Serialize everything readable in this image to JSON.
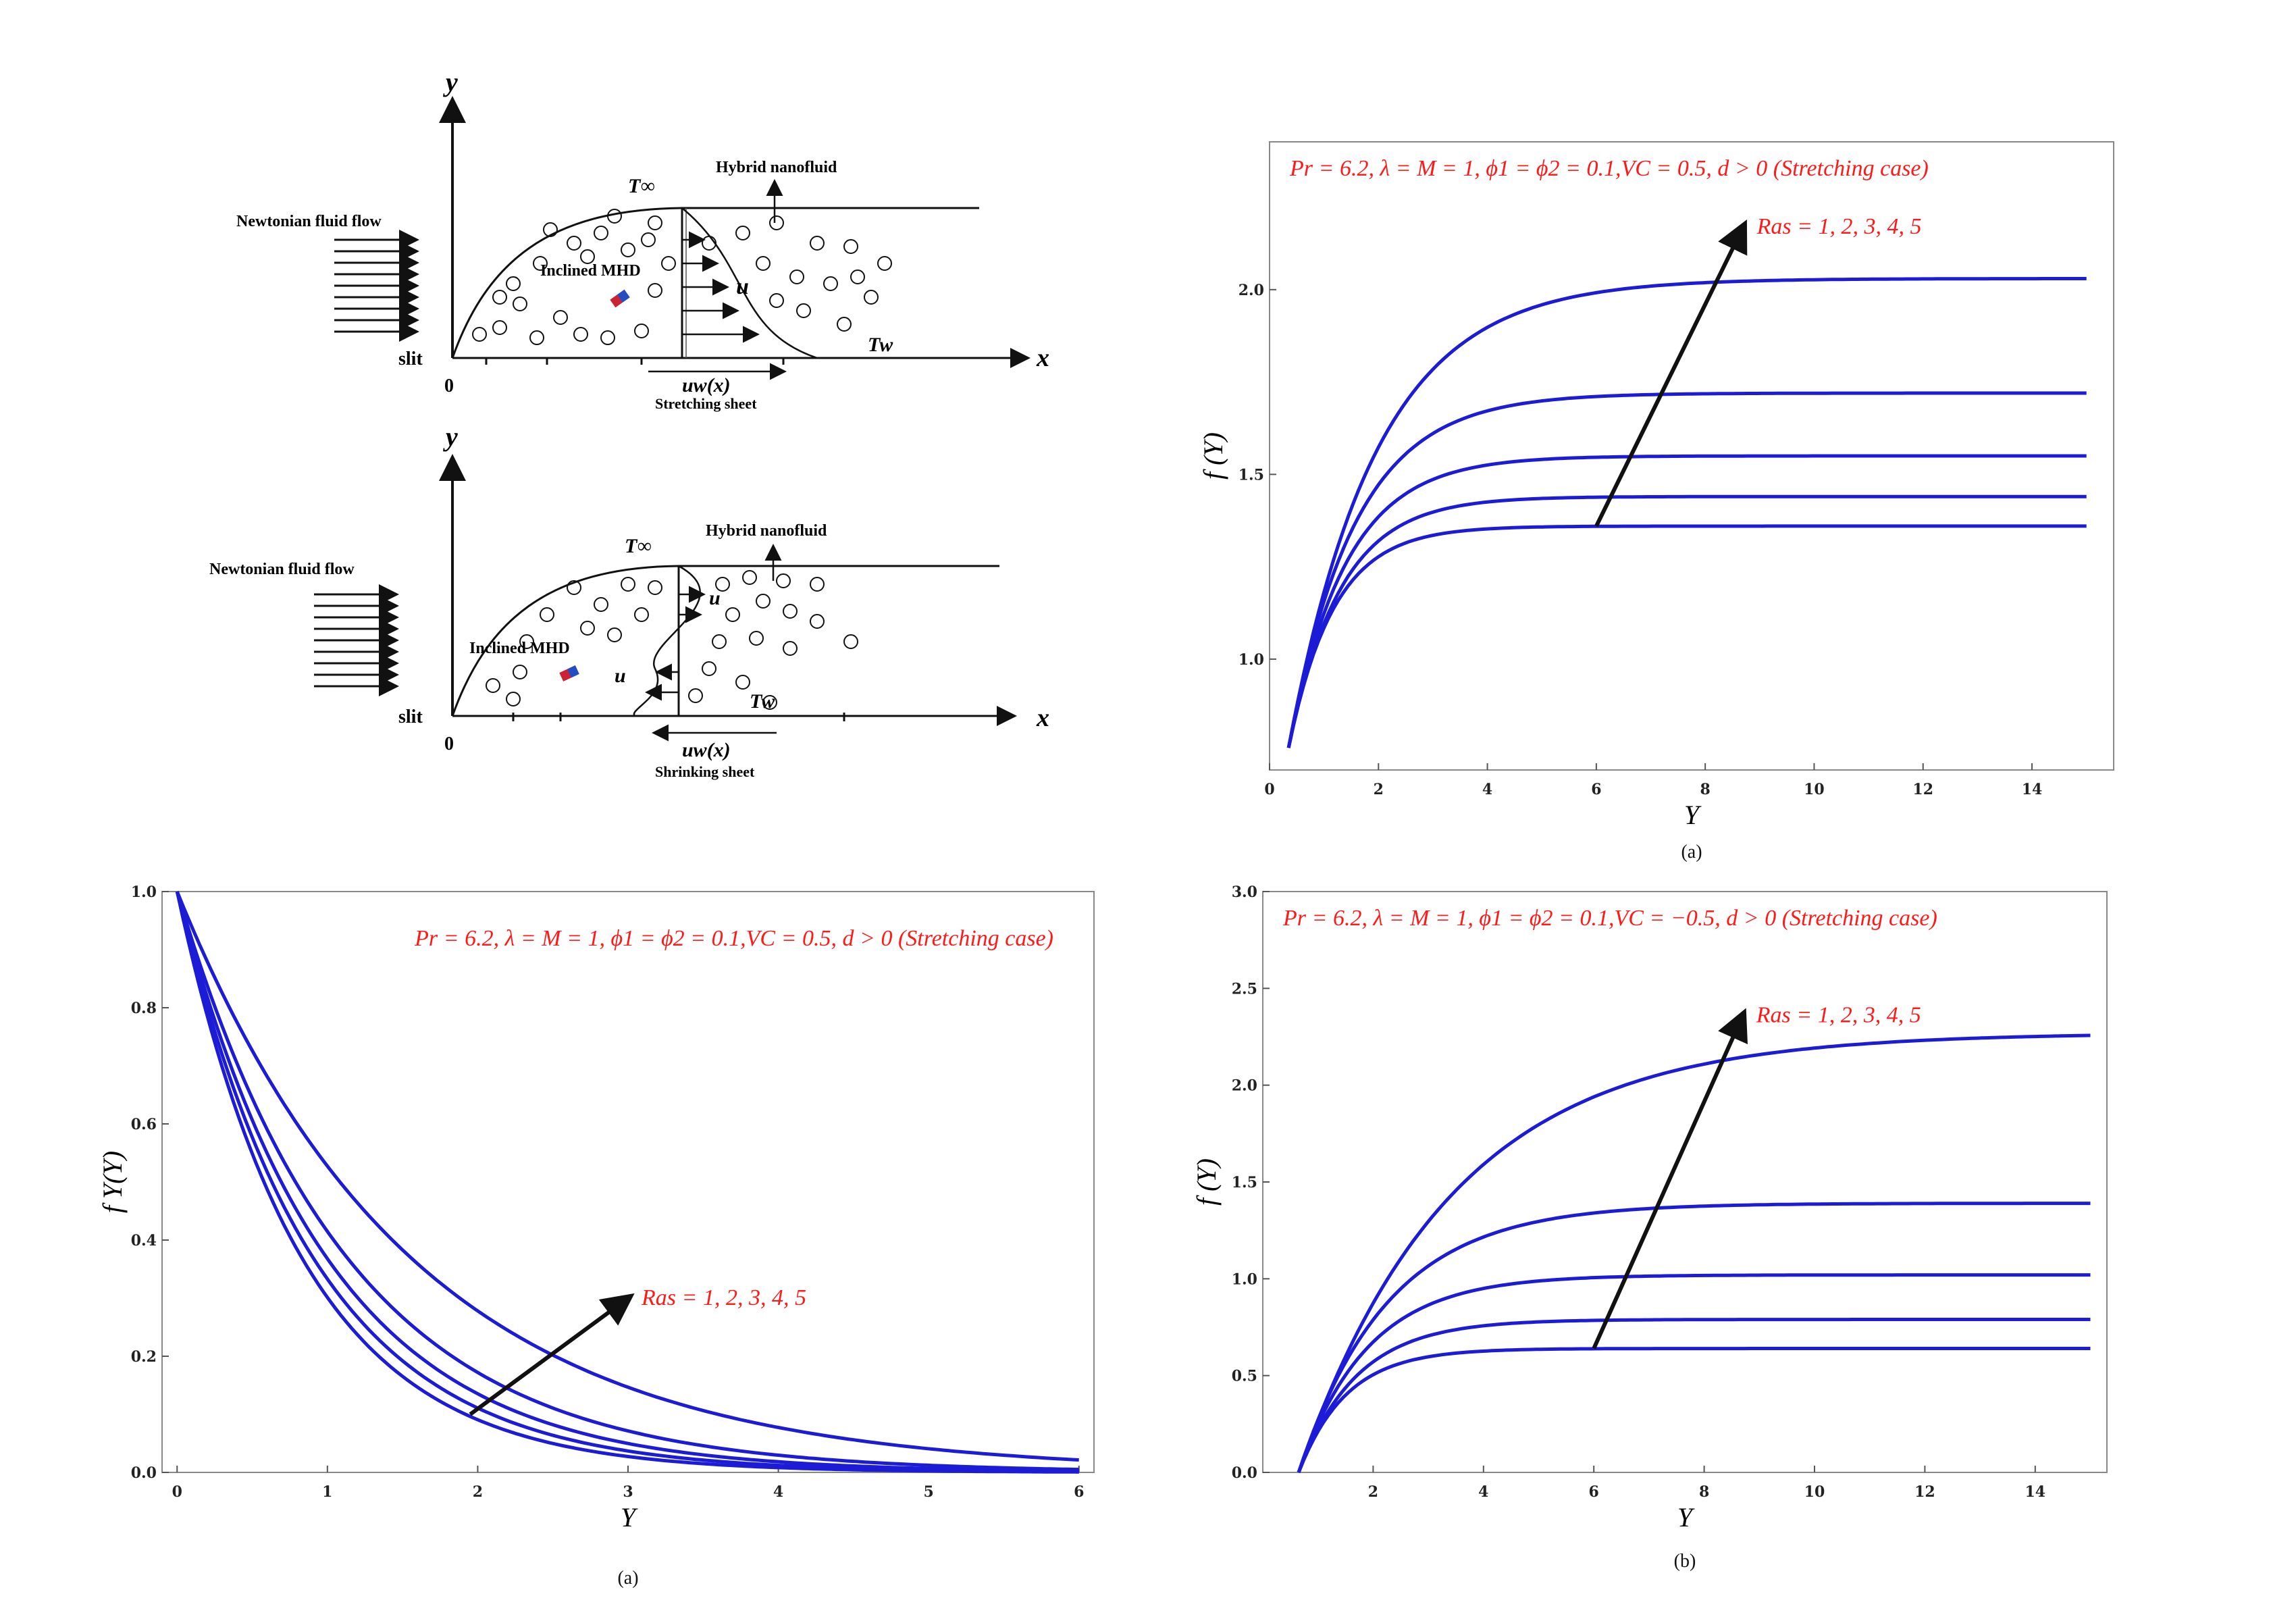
{
  "schematic": {
    "stretching": {
      "y_axis": "y",
      "x_axis": "x",
      "origin": "0",
      "slit": "slit",
      "flow_label": "Newtonian fluid flow",
      "t_inf": "T∞",
      "t_w": "Tw",
      "hybrid": "Hybrid nanofluid",
      "mhd": "Inclined MHD",
      "u": "u",
      "uw": "uw(x)",
      "sheet": "Stretching sheet"
    },
    "shrinking": {
      "y_axis": "y",
      "x_axis": "x",
      "origin": "0",
      "slit": "slit",
      "flow_label": "Newtonian fluid flow",
      "t_inf": "T∞",
      "t_w": "Tw",
      "hybrid": "Hybrid nanofluid",
      "mhd": "Inclined MHD",
      "u": "u",
      "uw": "uw(x)",
      "sheet": "Shrinking sheet"
    }
  },
  "chart_data": [
    {
      "id": "top-right",
      "type": "line",
      "title": "Pr = 6.2, λ = M = 1, ϕ1 = ϕ2 = 0.1,VC = 0.5, d > 0 (Stretching case)",
      "annotation": "Ras = 1, 2, 3, 4, 5",
      "xlabel": "Y",
      "ylabel": "f (Y)",
      "xlim": [
        0,
        15.5
      ],
      "ylim": [
        0.7,
        2.4
      ],
      "xticks": [
        0,
        2,
        4,
        6,
        8,
        10,
        12,
        14
      ],
      "yticks": [
        1.0,
        1.5,
        2.0
      ],
      "caption": "(a)",
      "x_start": 0.35,
      "x_end": 15,
      "y_start": 0.76,
      "series": [
        {
          "plateau": 1.36,
          "rate": 1.2
        },
        {
          "plateau": 1.44,
          "rate": 1.05
        },
        {
          "plateau": 1.55,
          "rate": 0.95
        },
        {
          "plateau": 1.72,
          "rate": 0.82
        },
        {
          "plateau": 2.03,
          "rate": 0.62
        }
      ],
      "arrow": {
        "from": [
          6,
          1.36
        ],
        "to": [
          8.7,
          2.17
        ]
      }
    },
    {
      "id": "bottom-left",
      "type": "line",
      "title": "Pr = 6.2, λ = M = 1, ϕ1 = ϕ2 = 0.1,VC = 0.5, d > 0 (Stretching case)",
      "annotation": "Ras = 1, 2, 3, 4, 5",
      "xlabel": "Y",
      "ylabel": "f Y(Y)",
      "xlim": [
        -0.1,
        6.1
      ],
      "ylim": [
        0,
        1.0
      ],
      "xticks": [
        0,
        1,
        2,
        3,
        4,
        5,
        6
      ],
      "yticks": [
        0.0,
        0.2,
        0.4,
        0.6,
        0.8,
        1.0
      ],
      "caption": "(a)",
      "series": [
        {
          "rate": 1.2
        },
        {
          "rate": 1.1
        },
        {
          "rate": 1.0
        },
        {
          "rate": 0.88
        },
        {
          "rate": 0.64
        }
      ],
      "arrow": {
        "from": [
          1.95,
          0.1
        ],
        "to": [
          3.0,
          0.3
        ]
      }
    },
    {
      "id": "bottom-right",
      "type": "line",
      "title": "Pr = 6.2, λ = M = 1, ϕ1 = ϕ2 = 0.1,VC = −0.5, d > 0 (Stretching case)",
      "annotation": "Ras = 1, 2, 3, 4, 5",
      "xlabel": "Y",
      "ylabel": "f (Y)",
      "xlim": [
        0,
        15.3
      ],
      "ylim": [
        0,
        3.0
      ],
      "xticks": [
        2,
        4,
        6,
        8,
        10,
        12,
        14
      ],
      "yticks": [
        0.0,
        0.5,
        1.0,
        1.5,
        2.0,
        2.5,
        3.0
      ],
      "caption": "(b)",
      "x_start": 0.65,
      "x_end": 15,
      "series": [
        {
          "plateau": 0.64,
          "rate": 1.15
        },
        {
          "plateau": 0.79,
          "rate": 0.95
        },
        {
          "plateau": 1.02,
          "rate": 0.8
        },
        {
          "plateau": 1.39,
          "rate": 0.62
        },
        {
          "plateau": 2.27,
          "rate": 0.36
        }
      ],
      "arrow": {
        "from": [
          6.0,
          0.64
        ],
        "to": [
          8.7,
          2.36
        ]
      }
    }
  ],
  "colors": {
    "curve": "#1c1cd6",
    "annotation": "#ff1a1a",
    "arrow": "#111111"
  }
}
